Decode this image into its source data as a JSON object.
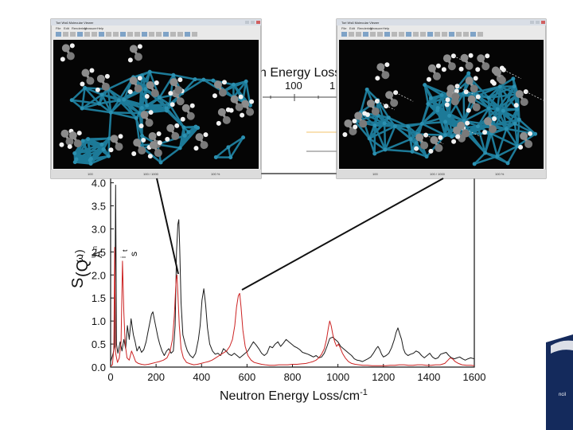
{
  "chart_data": {
    "type": "line",
    "title": "",
    "xlabel": "Neutron Energy Loss/cm",
    "xlabel_superscript": "-1",
    "ylabel_parts": [
      "S",
      "(Q",
      ",",
      "ω",
      ")",
      "A",
      "u",
      "n",
      "i",
      "t",
      "s"
    ],
    "xlim": [
      0,
      1600
    ],
    "ylim": [
      0,
      4.2
    ],
    "x_ticks": [
      "0",
      "200",
      "400",
      "600",
      "800",
      "1000",
      "1200",
      "1400",
      "1600"
    ],
    "y_ticks": [
      "0.0",
      "0.5",
      "1.0",
      "1.5",
      "2.0",
      "2.5",
      "3.0",
      "3.5",
      "4.0"
    ],
    "series": [
      {
        "color": "#1a1a1a",
        "points": [
          [
            0,
            0.12
          ],
          [
            10,
            0.28
          ],
          [
            18,
            0.45
          ],
          [
            22,
            3.95
          ],
          [
            26,
            0.5
          ],
          [
            32,
            0.3
          ],
          [
            42,
            0.55
          ],
          [
            50,
            0.35
          ],
          [
            58,
            0.6
          ],
          [
            66,
            0.4
          ],
          [
            74,
            0.9
          ],
          [
            82,
            0.6
          ],
          [
            90,
            1.05
          ],
          [
            100,
            0.7
          ],
          [
            108,
            0.55
          ],
          [
            116,
            0.35
          ],
          [
            126,
            0.45
          ],
          [
            136,
            0.32
          ],
          [
            146,
            0.38
          ],
          [
            156,
            0.55
          ],
          [
            164,
            0.75
          ],
          [
            172,
            0.95
          ],
          [
            180,
            1.15
          ],
          [
            186,
            1.2
          ],
          [
            192,
            1.05
          ],
          [
            200,
            0.85
          ],
          [
            208,
            0.65
          ],
          [
            216,
            0.5
          ],
          [
            226,
            0.35
          ],
          [
            236,
            0.25
          ],
          [
            246,
            0.35
          ],
          [
            256,
            0.4
          ],
          [
            266,
            0.3
          ],
          [
            276,
            0.35
          ],
          [
            284,
            0.9
          ],
          [
            290,
            2.5
          ],
          [
            296,
            3.1
          ],
          [
            300,
            3.2
          ],
          [
            304,
            2.6
          ],
          [
            310,
            1.4
          ],
          [
            318,
            0.7
          ],
          [
            328,
            0.5
          ],
          [
            338,
            0.35
          ],
          [
            350,
            0.25
          ],
          [
            362,
            0.2
          ],
          [
            374,
            0.3
          ],
          [
            386,
            0.6
          ],
          [
            394,
            0.9
          ],
          [
            402,
            1.45
          ],
          [
            410,
            1.7
          ],
          [
            418,
            1.35
          ],
          [
            426,
            0.85
          ],
          [
            436,
            0.5
          ],
          [
            448,
            0.35
          ],
          [
            460,
            0.28
          ],
          [
            472,
            0.3
          ],
          [
            484,
            0.25
          ],
          [
            496,
            0.4
          ],
          [
            508,
            0.35
          ],
          [
            520,
            0.28
          ],
          [
            532,
            0.25
          ],
          [
            544,
            0.3
          ],
          [
            556,
            0.25
          ],
          [
            568,
            0.2
          ],
          [
            580,
            0.25
          ],
          [
            592,
            0.3
          ],
          [
            604,
            0.35
          ],
          [
            616,
            0.45
          ],
          [
            628,
            0.55
          ],
          [
            640,
            0.48
          ],
          [
            652,
            0.4
          ],
          [
            664,
            0.3
          ],
          [
            676,
            0.25
          ],
          [
            688,
            0.3
          ],
          [
            700,
            0.45
          ],
          [
            712,
            0.42
          ],
          [
            724,
            0.5
          ],
          [
            736,
            0.55
          ],
          [
            748,
            0.45
          ],
          [
            760,
            0.52
          ],
          [
            772,
            0.6
          ],
          [
            784,
            0.55
          ],
          [
            796,
            0.5
          ],
          [
            808,
            0.45
          ],
          [
            820,
            0.42
          ],
          [
            832,
            0.38
          ],
          [
            844,
            0.32
          ],
          [
            856,
            0.3
          ],
          [
            868,
            0.28
          ],
          [
            880,
            0.25
          ],
          [
            892,
            0.22
          ],
          [
            904,
            0.25
          ],
          [
            916,
            0.2
          ],
          [
            928,
            0.22
          ],
          [
            940,
            0.3
          ],
          [
            952,
            0.45
          ],
          [
            964,
            0.62
          ],
          [
            976,
            0.65
          ],
          [
            988,
            0.6
          ],
          [
            1000,
            0.55
          ],
          [
            1012,
            0.45
          ],
          [
            1024,
            0.4
          ],
          [
            1036,
            0.35
          ],
          [
            1048,
            0.3
          ],
          [
            1060,
            0.25
          ],
          [
            1072,
            0.18
          ],
          [
            1084,
            0.15
          ],
          [
            1096,
            0.14
          ],
          [
            1108,
            0.12
          ],
          [
            1120,
            0.15
          ],
          [
            1132,
            0.18
          ],
          [
            1144,
            0.22
          ],
          [
            1156,
            0.3
          ],
          [
            1168,
            0.4
          ],
          [
            1176,
            0.45
          ],
          [
            1184,
            0.38
          ],
          [
            1192,
            0.28
          ],
          [
            1200,
            0.22
          ],
          [
            1212,
            0.25
          ],
          [
            1224,
            0.3
          ],
          [
            1236,
            0.42
          ],
          [
            1248,
            0.6
          ],
          [
            1256,
            0.75
          ],
          [
            1264,
            0.85
          ],
          [
            1272,
            0.72
          ],
          [
            1280,
            0.6
          ],
          [
            1288,
            0.4
          ],
          [
            1296,
            0.3
          ],
          [
            1308,
            0.25
          ],
          [
            1320,
            0.28
          ],
          [
            1332,
            0.3
          ],
          [
            1344,
            0.35
          ],
          [
            1356,
            0.32
          ],
          [
            1368,
            0.25
          ],
          [
            1380,
            0.2
          ],
          [
            1392,
            0.25
          ],
          [
            1404,
            0.3
          ],
          [
            1416,
            0.22
          ],
          [
            1428,
            0.18
          ],
          [
            1440,
            0.2
          ],
          [
            1452,
            0.28
          ],
          [
            1464,
            0.3
          ],
          [
            1476,
            0.32
          ],
          [
            1488,
            0.25
          ],
          [
            1500,
            0.2
          ],
          [
            1512,
            0.18
          ],
          [
            1524,
            0.2
          ],
          [
            1536,
            0.22
          ],
          [
            1548,
            0.18
          ],
          [
            1560,
            0.15
          ],
          [
            1572,
            0.18
          ],
          [
            1584,
            0.2
          ],
          [
            1600,
            0.18
          ]
        ]
      },
      {
        "color": "#cc2222",
        "points": [
          [
            0,
            0.02
          ],
          [
            8,
            0.05
          ],
          [
            14,
            0.4
          ],
          [
            18,
            2.6
          ],
          [
            22,
            0.3
          ],
          [
            30,
            0.1
          ],
          [
            38,
            0.2
          ],
          [
            46,
            0.55
          ],
          [
            52,
            2.3
          ],
          [
            58,
            1.2
          ],
          [
            64,
            0.5
          ],
          [
            72,
            0.2
          ],
          [
            82,
            0.15
          ],
          [
            92,
            0.35
          ],
          [
            100,
            0.25
          ],
          [
            110,
            0.12
          ],
          [
            122,
            0.08
          ],
          [
            136,
            0.06
          ],
          [
            150,
            0.05
          ],
          [
            166,
            0.06
          ],
          [
            182,
            0.08
          ],
          [
            198,
            0.1
          ],
          [
            214,
            0.12
          ],
          [
            232,
            0.15
          ],
          [
            248,
            0.2
          ],
          [
            262,
            0.35
          ],
          [
            272,
            0.6
          ],
          [
            280,
            1.1
          ],
          [
            288,
            1.9
          ],
          [
            292,
            2.0
          ],
          [
            296,
            1.6
          ],
          [
            302,
            0.9
          ],
          [
            310,
            0.4
          ],
          [
            320,
            0.2
          ],
          [
            334,
            0.1
          ],
          [
            350,
            0.07
          ],
          [
            366,
            0.05
          ],
          [
            382,
            0.06
          ],
          [
            398,
            0.08
          ],
          [
            414,
            0.1
          ],
          [
            430,
            0.12
          ],
          [
            446,
            0.15
          ],
          [
            462,
            0.2
          ],
          [
            478,
            0.25
          ],
          [
            494,
            0.3
          ],
          [
            510,
            0.35
          ],
          [
            524,
            0.45
          ],
          [
            536,
            0.6
          ],
          [
            546,
            0.9
          ],
          [
            554,
            1.3
          ],
          [
            562,
            1.55
          ],
          [
            568,
            1.6
          ],
          [
            574,
            1.3
          ],
          [
            582,
            0.8
          ],
          [
            592,
            0.45
          ],
          [
            604,
            0.25
          ],
          [
            618,
            0.15
          ],
          [
            632,
            0.1
          ],
          [
            648,
            0.08
          ],
          [
            664,
            0.06
          ],
          [
            680,
            0.05
          ],
          [
            700,
            0.04
          ],
          [
            720,
            0.04
          ],
          [
            740,
            0.05
          ],
          [
            760,
            0.05
          ],
          [
            780,
            0.05
          ],
          [
            800,
            0.06
          ],
          [
            820,
            0.06
          ],
          [
            840,
            0.07
          ],
          [
            860,
            0.08
          ],
          [
            876,
            0.1
          ],
          [
            890,
            0.12
          ],
          [
            904,
            0.15
          ],
          [
            916,
            0.2
          ],
          [
            928,
            0.28
          ],
          [
            940,
            0.4
          ],
          [
            950,
            0.6
          ],
          [
            958,
            0.85
          ],
          [
            964,
            1.0
          ],
          [
            970,
            0.9
          ],
          [
            978,
            0.7
          ],
          [
            986,
            0.55
          ],
          [
            994,
            0.45
          ],
          [
            1002,
            0.5
          ],
          [
            1010,
            0.42
          ],
          [
            1020,
            0.3
          ],
          [
            1032,
            0.2
          ],
          [
            1046,
            0.12
          ],
          [
            1060,
            0.08
          ],
          [
            1076,
            0.06
          ],
          [
            1092,
            0.05
          ],
          [
            1110,
            0.04
          ],
          [
            1130,
            0.04
          ],
          [
            1150,
            0.03
          ],
          [
            1170,
            0.03
          ],
          [
            1190,
            0.03
          ],
          [
            1210,
            0.03
          ],
          [
            1230,
            0.04
          ],
          [
            1250,
            0.04
          ],
          [
            1270,
            0.05
          ],
          [
            1290,
            0.05
          ],
          [
            1310,
            0.04
          ],
          [
            1330,
            0.04
          ],
          [
            1350,
            0.05
          ],
          [
            1370,
            0.05
          ],
          [
            1390,
            0.04
          ],
          [
            1410,
            0.04
          ],
          [
            1430,
            0.05
          ],
          [
            1450,
            0.05
          ],
          [
            1470,
            0.08
          ],
          [
            1484,
            0.15
          ],
          [
            1494,
            0.2
          ],
          [
            1504,
            0.18
          ],
          [
            1516,
            0.12
          ],
          [
            1530,
            0.08
          ],
          [
            1546,
            0.05
          ],
          [
            1566,
            0.04
          ],
          [
            1586,
            0.04
          ],
          [
            1600,
            0.03
          ]
        ]
      }
    ]
  },
  "background_chart": {
    "title": "n Energy Loss",
    "ticks": [
      "100",
      "1"
    ]
  },
  "screenshots": [
    {
      "window_title": "Tori Ws6 Molecular Viewer",
      "menu": [
        "File",
        "Edit",
        "Rendering",
        "Measure",
        "Help"
      ],
      "status": [
        "100",
        "100 / 1000",
        "100 %"
      ]
    },
    {
      "window_title": "Tori Ws6 Molecular Viewer",
      "menu": [
        "File",
        "Edit",
        "Rendering",
        "Measure",
        "Help"
      ],
      "status": [
        "100",
        "100 / 1000",
        "100 %"
      ]
    }
  ],
  "colors": {
    "primary_line": "#1a1a1a",
    "red_line": "#cc2222",
    "lattice": "#1d7a98",
    "logo_navy": "#142a5c"
  },
  "logo": {
    "text": "ncil"
  }
}
